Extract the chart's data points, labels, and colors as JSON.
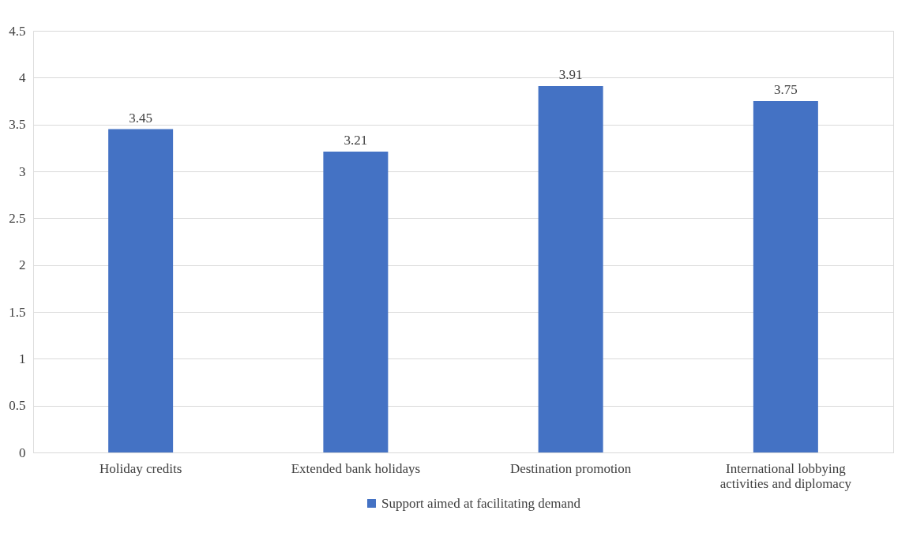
{
  "chart_data": {
    "type": "bar",
    "categories": [
      "Holiday credits",
      "Extended bank holidays",
      "Destination promotion",
      "International lobbying activities and diplomacy"
    ],
    "series": [
      {
        "name": "Support aimed at facilitating demand",
        "color": "#4472c4",
        "values": [
          3.45,
          3.21,
          3.91,
          3.75
        ]
      }
    ],
    "ylim": [
      0,
      4.5
    ],
    "yticks": [
      0,
      0.5,
      1,
      1.5,
      2,
      2.5,
      3,
      3.5,
      4,
      4.5
    ],
    "grid": "y",
    "legend": "bottom",
    "data_labels": true
  }
}
